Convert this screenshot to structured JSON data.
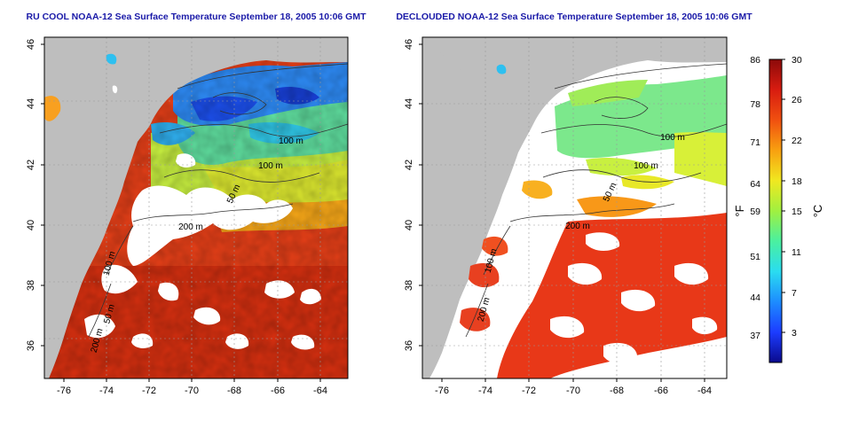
{
  "maps": [
    {
      "id": "left",
      "title": "RU COOL NOAA-12 Sea Surface Temperature September 18, 2005 10:06 GMT",
      "xticks": [
        "-76",
        "-74",
        "-72",
        "-70",
        "-68",
        "-66",
        "-64"
      ],
      "yticks": [
        "36",
        "38",
        "40",
        "42",
        "44",
        "46"
      ],
      "contours": [
        "100 m",
        "100 m",
        "50 m",
        "200 m",
        "100 m",
        "50 m",
        "200 m"
      ]
    },
    {
      "id": "right",
      "title": "DECLOUDED NOAA-12 Sea Surface Temperature September 18, 2005 10:06 GMT",
      "xticks": [
        "-76",
        "-74",
        "-72",
        "-70",
        "-68",
        "-66",
        "-64"
      ],
      "yticks": [
        "36",
        "38",
        "40",
        "42",
        "44",
        "46"
      ],
      "contours": [
        "100 m",
        "100 m",
        "50 m",
        "200 m",
        "100 m",
        "200 m"
      ]
    }
  ],
  "colorbar": {
    "fahrenheit_ticks": [
      "86",
      "78",
      "71",
      "64",
      "59",
      "51",
      "44",
      "37"
    ],
    "celsius_ticks": [
      "30",
      "26",
      "22",
      "18",
      "15",
      "11",
      "7",
      "3"
    ],
    "fahrenheit_label": "°F",
    "celsius_label": "°C",
    "colors": [
      "#0a0a8c",
      "#1c3cff",
      "#1d8cff",
      "#2adcf0",
      "#4af0a0",
      "#a0f040",
      "#f0e820",
      "#f8a010",
      "#f05010",
      "#d81c10",
      "#8c0a0a"
    ]
  },
  "colors": {
    "land": "#bebebe",
    "cloud": "#ffffff",
    "title": "#1a1aa8",
    "gridline": "#9a9a9a"
  }
}
